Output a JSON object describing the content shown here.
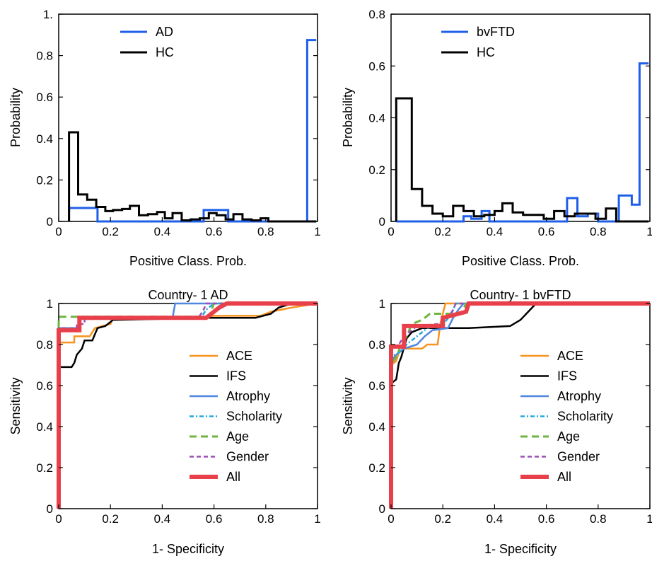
{
  "chart_data": [
    {
      "type": "histogram",
      "xlabel": "Positive Class. Prob.",
      "ylabel": "Probability",
      "xlim": [
        0,
        1
      ],
      "ylim": [
        0,
        1
      ],
      "xticks": [
        "0",
        "0.2",
        "0.4",
        "0.6",
        "0.8",
        "1"
      ],
      "yticks": [
        "0",
        "0.2",
        "0.4",
        "0.6",
        "0.8",
        "1."
      ],
      "legend_position": "top-left",
      "series": [
        {
          "name": "AD",
          "color": "#1f5fe8",
          "width": 3,
          "steps": [
            [
              0.04,
              0.065
            ],
            [
              0.15,
              0
            ],
            [
              0.56,
              0.055
            ],
            [
              0.655,
              0
            ],
            [
              0.96,
              0.875
            ],
            [
              0.995,
              0.875
            ]
          ]
        },
        {
          "name": "HC",
          "color": "#000000",
          "width": 3,
          "steps": [
            [
              0.04,
              0.43
            ],
            [
              0.075,
              0.13
            ],
            [
              0.11,
              0.105
            ],
            [
              0.145,
              0.07
            ],
            [
              0.18,
              0.05
            ],
            [
              0.21,
              0.055
            ],
            [
              0.245,
              0.06
            ],
            [
              0.275,
              0.075
            ],
            [
              0.31,
              0.03
            ],
            [
              0.345,
              0.035
            ],
            [
              0.38,
              0.045
            ],
            [
              0.41,
              0.015
            ],
            [
              0.44,
              0.04
            ],
            [
              0.475,
              0.005
            ],
            [
              0.51,
              0.01
            ],
            [
              0.545,
              0.015
            ],
            [
              0.58,
              0.04
            ],
            [
              0.61,
              0.03
            ],
            [
              0.645,
              0.01
            ],
            [
              0.675,
              0.035
            ],
            [
              0.71,
              0.01
            ],
            [
              0.745,
              0.005
            ],
            [
              0.78,
              0.015
            ],
            [
              0.81,
              0
            ],
            [
              0.995,
              0
            ]
          ]
        }
      ]
    },
    {
      "type": "histogram",
      "xlabel": "Positive Class. Prob.",
      "ylabel": "Probability",
      "xlim": [
        0,
        1
      ],
      "ylim": [
        0,
        0.8
      ],
      "xticks": [
        "0",
        "0.2",
        "0.4",
        "0.6",
        "0.8",
        "1"
      ],
      "yticks": [
        "0",
        "0.2",
        "0.4",
        "0.6",
        "0.8"
      ],
      "legend_position": "top-left",
      "series": [
        {
          "name": "bvFTD",
          "color": "#1f5fe8",
          "width": 3,
          "steps": [
            [
              0.02,
              0
            ],
            [
              0.28,
              0.02
            ],
            [
              0.31,
              0.01
            ],
            [
              0.35,
              0.04
            ],
            [
              0.38,
              0
            ],
            [
              0.68,
              0.09
            ],
            [
              0.72,
              0.02
            ],
            [
              0.76,
              0.03
            ],
            [
              0.8,
              0
            ],
            [
              0.88,
              0.1
            ],
            [
              0.93,
              0.065
            ],
            [
              0.96,
              0.61
            ],
            [
              0.995,
              0.61
            ]
          ]
        },
        {
          "name": "HC",
          "color": "#000000",
          "width": 3,
          "steps": [
            [
              0.02,
              0.475
            ],
            [
              0.08,
              0.125
            ],
            [
              0.12,
              0.06
            ],
            [
              0.16,
              0.03
            ],
            [
              0.2,
              0.02
            ],
            [
              0.24,
              0.06
            ],
            [
              0.28,
              0.04
            ],
            [
              0.32,
              0.02
            ],
            [
              0.36,
              0.025
            ],
            [
              0.4,
              0.04
            ],
            [
              0.43,
              0.07
            ],
            [
              0.47,
              0.035
            ],
            [
              0.51,
              0.025
            ],
            [
              0.55,
              0.025
            ],
            [
              0.59,
              0.01
            ],
            [
              0.63,
              0.04
            ],
            [
              0.67,
              0.02
            ],
            [
              0.71,
              0.03
            ],
            [
              0.75,
              0.03
            ],
            [
              0.79,
              0.01
            ],
            [
              0.83,
              0.05
            ],
            [
              0.87,
              0
            ],
            [
              0.995,
              0
            ]
          ]
        }
      ]
    },
    {
      "type": "line",
      "title": "Country- 1 AD",
      "xlabel": "1- Specificity",
      "ylabel": "Sensitivity",
      "xlim": [
        0,
        1
      ],
      "ylim": [
        0,
        1
      ],
      "xticks": [
        "0",
        "0.2",
        "0.4",
        "0.6",
        "0.8",
        "1"
      ],
      "yticks": [
        "0",
        "0.2",
        "0.4",
        "0.6",
        "0.8",
        "1"
      ],
      "legend_position": "bottom-right",
      "series": [
        {
          "name": "ACE",
          "color": "#f7931e",
          "width": 2.5,
          "dash": "",
          "points": [
            [
              0,
              0
            ],
            [
              0,
              0.81
            ],
            [
              0.06,
              0.81
            ],
            [
              0.06,
              0.84
            ],
            [
              0.12,
              0.84
            ],
            [
              0.14,
              0.88
            ],
            [
              0.2,
              0.9
            ],
            [
              0.21,
              0.93
            ],
            [
              0.55,
              0.93
            ],
            [
              0.6,
              0.94
            ],
            [
              0.78,
              0.94
            ],
            [
              0.82,
              0.96
            ],
            [
              0.9,
              0.98
            ],
            [
              1,
              1
            ]
          ]
        },
        {
          "name": "IFS",
          "color": "#000000",
          "width": 2.5,
          "dash": "",
          "points": [
            [
              0,
              0
            ],
            [
              0,
              0.69
            ],
            [
              0.05,
              0.69
            ],
            [
              0.06,
              0.71
            ],
            [
              0.07,
              0.75
            ],
            [
              0.09,
              0.78
            ],
            [
              0.1,
              0.82
            ],
            [
              0.13,
              0.82
            ],
            [
              0.14,
              0.85
            ],
            [
              0.15,
              0.88
            ],
            [
              0.18,
              0.89
            ],
            [
              0.21,
              0.92
            ],
            [
              0.58,
              0.93
            ],
            [
              0.76,
              0.93
            ],
            [
              0.82,
              0.95
            ],
            [
              0.85,
              0.98
            ],
            [
              0.9,
              1
            ],
            [
              1,
              1
            ]
          ]
        },
        {
          "name": "Atrophy",
          "color": "#4f86e0",
          "width": 2.5,
          "dash": "",
          "points": [
            [
              0,
              0
            ],
            [
              0,
              0.88
            ],
            [
              0.08,
              0.88
            ],
            [
              0.08,
              0.93
            ],
            [
              0.44,
              0.93
            ],
            [
              0.45,
              1
            ],
            [
              1,
              1
            ]
          ]
        },
        {
          "name": "Scholarity",
          "color": "#1ea8e0",
          "width": 2.5,
          "dash": "6 3 2 3",
          "points": [
            [
              0,
              0
            ],
            [
              0,
              0.88
            ],
            [
              0.08,
              0.88
            ],
            [
              0.08,
              0.93
            ],
            [
              0.55,
              0.93
            ],
            [
              0.57,
              0.97
            ],
            [
              0.6,
              1
            ],
            [
              1,
              1
            ]
          ]
        },
        {
          "name": "Age",
          "color": "#6fb43f",
          "width": 3,
          "dash": "10 6",
          "points": [
            [
              0,
              0
            ],
            [
              0,
              0.935
            ],
            [
              0.2,
              0.935
            ],
            [
              0.58,
              0.935
            ],
            [
              0.6,
              1
            ],
            [
              1,
              1
            ]
          ]
        },
        {
          "name": "Gender",
          "color": "#9b4fb5",
          "width": 2.5,
          "dash": "6 4",
          "points": [
            [
              0,
              0
            ],
            [
              0,
              0.88
            ],
            [
              0.07,
              0.88
            ],
            [
              0.07,
              0.9
            ],
            [
              0.1,
              0.9
            ],
            [
              0.1,
              0.93
            ],
            [
              0.54,
              0.93
            ],
            [
              0.56,
              0.97
            ],
            [
              0.57,
              1
            ],
            [
              1,
              1
            ]
          ]
        },
        {
          "name": "All",
          "color": "#e8404a",
          "width": 6,
          "dash": "",
          "points": [
            [
              0,
              0
            ],
            [
              0,
              0.87
            ],
            [
              0.08,
              0.87
            ],
            [
              0.08,
              0.93
            ],
            [
              0.57,
              0.93
            ],
            [
              0.62,
              0.98
            ],
            [
              0.65,
              1
            ],
            [
              1,
              1
            ]
          ]
        }
      ]
    },
    {
      "type": "line",
      "title": "Country- 1 bvFTD",
      "xlabel": "1- Specificity",
      "ylabel": "Sensitivity",
      "xlim": [
        0,
        1
      ],
      "ylim": [
        0,
        1
      ],
      "xticks": [
        "0",
        "0.2",
        "0.4",
        "0.6",
        "0.8",
        "1"
      ],
      "yticks": [
        "0",
        "0.2",
        "0.4",
        "0.6",
        "0.8",
        "1"
      ],
      "legend_position": "bottom-right",
      "series": [
        {
          "name": "ACE",
          "color": "#f7931e",
          "width": 2.5,
          "dash": "",
          "points": [
            [
              0,
              0
            ],
            [
              0,
              0.7
            ],
            [
              0.02,
              0.72
            ],
            [
              0.03,
              0.76
            ],
            [
              0.05,
              0.78
            ],
            [
              0.12,
              0.78
            ],
            [
              0.14,
              0.8
            ],
            [
              0.18,
              0.8
            ],
            [
              0.19,
              0.9
            ],
            [
              0.2,
              0.95
            ],
            [
              0.21,
              1
            ],
            [
              1,
              1
            ]
          ]
        },
        {
          "name": "IFS",
          "color": "#000000",
          "width": 2.5,
          "dash": "",
          "points": [
            [
              0,
              0
            ],
            [
              0,
              0.61
            ],
            [
              0.02,
              0.63
            ],
            [
              0.03,
              0.71
            ],
            [
              0.04,
              0.74
            ],
            [
              0.06,
              0.83
            ],
            [
              0.08,
              0.86
            ],
            [
              0.12,
              0.88
            ],
            [
              0.2,
              0.88
            ],
            [
              0.3,
              0.88
            ],
            [
              0.46,
              0.89
            ],
            [
              0.5,
              0.92
            ],
            [
              0.53,
              0.96
            ],
            [
              0.56,
              1
            ],
            [
              1,
              1
            ]
          ]
        },
        {
          "name": "Atrophy",
          "color": "#4f86e0",
          "width": 2.5,
          "dash": "",
          "points": [
            [
              0,
              0
            ],
            [
              0,
              0.72
            ],
            [
              0.02,
              0.75
            ],
            [
              0.05,
              0.78
            ],
            [
              0.1,
              0.8
            ],
            [
              0.13,
              0.84
            ],
            [
              0.16,
              0.87
            ],
            [
              0.22,
              0.88
            ],
            [
              0.24,
              0.93
            ],
            [
              0.26,
              0.97
            ],
            [
              0.28,
              1
            ],
            [
              1,
              1
            ]
          ]
        },
        {
          "name": "Scholarity",
          "color": "#1ea8e0",
          "width": 2.5,
          "dash": "6 3 2 3",
          "points": [
            [
              0,
              0
            ],
            [
              0,
              0.74
            ],
            [
              0.03,
              0.76
            ],
            [
              0.06,
              0.8
            ],
            [
              0.1,
              0.84
            ],
            [
              0.14,
              0.88
            ],
            [
              0.2,
              0.9
            ],
            [
              0.23,
              0.94
            ],
            [
              0.25,
              1
            ],
            [
              1,
              1
            ]
          ]
        },
        {
          "name": "Age",
          "color": "#6fb43f",
          "width": 3,
          "dash": "10 6",
          "points": [
            [
              0,
              0
            ],
            [
              0,
              0.7
            ],
            [
              0.02,
              0.74
            ],
            [
              0.04,
              0.8
            ],
            [
              0.06,
              0.84
            ],
            [
              0.08,
              0.9
            ],
            [
              0.12,
              0.92
            ],
            [
              0.15,
              0.95
            ],
            [
              0.27,
              0.95
            ],
            [
              0.29,
              1
            ],
            [
              1,
              1
            ]
          ]
        },
        {
          "name": "Gender",
          "color": "#9b4fb5",
          "width": 2.5,
          "dash": "6 4",
          "points": [
            [
              0,
              0
            ],
            [
              0,
              0.78
            ],
            [
              0.03,
              0.8
            ],
            [
              0.05,
              0.84
            ],
            [
              0.1,
              0.89
            ],
            [
              0.18,
              0.9
            ],
            [
              0.22,
              0.93
            ],
            [
              0.24,
              0.97
            ],
            [
              0.25,
              1
            ],
            [
              1,
              1
            ]
          ]
        },
        {
          "name": "All",
          "color": "#e8404a",
          "width": 6,
          "dash": "",
          "points": [
            [
              0,
              0
            ],
            [
              0,
              0.79
            ],
            [
              0.05,
              0.79
            ],
            [
              0.05,
              0.89
            ],
            [
              0.2,
              0.89
            ],
            [
              0.2,
              0.93
            ],
            [
              0.29,
              0.96
            ],
            [
              0.3,
              1
            ],
            [
              1,
              1
            ]
          ]
        }
      ]
    }
  ]
}
